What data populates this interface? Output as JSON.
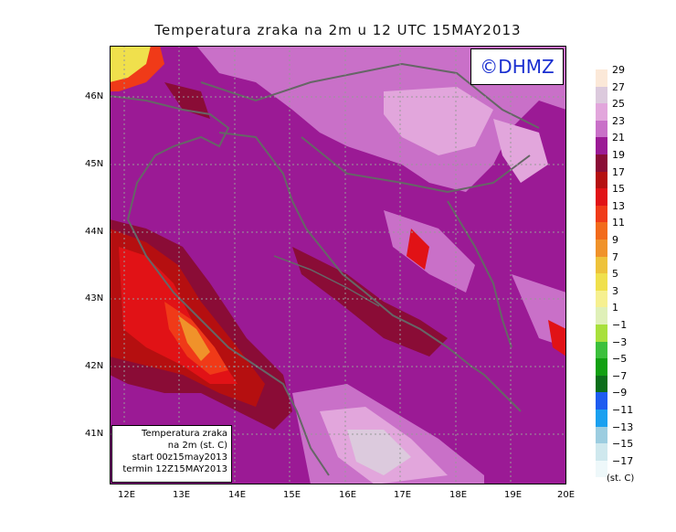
{
  "title": "Temperatura zraka na 2m u 12 UTC 15MAY2013",
  "logo": "©DHMZ",
  "info": {
    "line1": "Temperatura zraka",
    "line2": "na 2m (st. C)",
    "line3": "start 00z15may2013",
    "line4": "termin 12Z15MAY2013"
  },
  "lon_labels": [
    "12E",
    "13E",
    "14E",
    "15E",
    "16E",
    "17E",
    "18E",
    "19E",
    "20E"
  ],
  "lat_labels": [
    "46N",
    "45N",
    "44N",
    "43N",
    "42N",
    "41N"
  ],
  "colorbar": {
    "unit": "(st. C)",
    "labels": [
      "29",
      "27",
      "25",
      "23",
      "21",
      "19",
      "17",
      "15",
      "13",
      "11",
      "9",
      "7",
      "5",
      "3",
      "1",
      "−1",
      "−3",
      "−5",
      "−7",
      "−9",
      "−11",
      "−13",
      "−15",
      "−17"
    ],
    "colors": [
      "#fbe8d8",
      "#dccadd",
      "#e2a6dc",
      "#c970c8",
      "#9b1a95",
      "#8a0c36",
      "#b50f10",
      "#e11216",
      "#f03a18",
      "#f26a1b",
      "#f0922a",
      "#eec23a",
      "#f0e04c",
      "#f6f090",
      "#dff0b8",
      "#a8e03c",
      "#3cc03c",
      "#11a011",
      "#0b6e1a",
      "#1e5cf0",
      "#1aa0f0",
      "#9ccde0",
      "#cfe8ee",
      "#eef8fa"
    ]
  }
}
